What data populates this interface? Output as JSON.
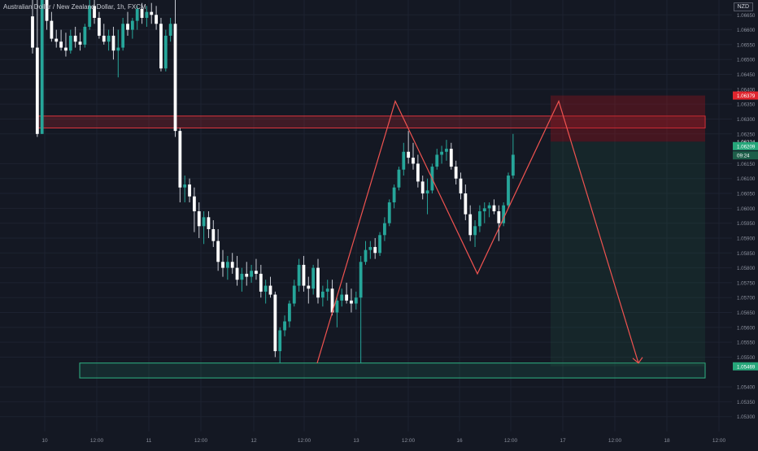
{
  "chart_data": {
    "type": "candlestick",
    "title": "Australian Dollar / New Zealand Dollar, 1h, FXCM",
    "currency": "NZD",
    "ylim": [
      1.0525,
      1.067
    ],
    "price_ticks": [
      "1.06650",
      "1.06600",
      "1.06550",
      "1.06500",
      "1.06450",
      "1.06400",
      "1.06350",
      "1.06300",
      "1.06250",
      "1.06150",
      "1.06100",
      "1.06050",
      "1.06000",
      "1.05950",
      "1.05900",
      "1.05850",
      "1.05800",
      "1.05750",
      "1.05700",
      "1.05650",
      "1.05600",
      "1.05550",
      "1.05500",
      "1.05400",
      "1.05350",
      "1.05300"
    ],
    "time_ticks": [
      "10",
      "12:00",
      "11",
      "12:00",
      "12",
      "12:00",
      "13",
      "12:00",
      "16",
      "12:00",
      "17",
      "12:00",
      "18",
      "12:00"
    ],
    "price_labels": [
      {
        "value": "1.06379",
        "price": 1.06379,
        "color": "#e0262e"
      },
      {
        "value": "1.06224",
        "price": 1.06224,
        "color": "transparent"
      },
      {
        "value": "1.06209",
        "price": 1.06209,
        "color": "#26a67a"
      },
      {
        "value": "09:24",
        "price": 1.06178,
        "color": "#1e5e4a"
      },
      {
        "value": "1.05469",
        "price": 1.05469,
        "color": "#26a67a"
      }
    ],
    "series": [
      {
        "name": "AUDNZD",
        "candles": [
          [
            1.06645,
            1.067,
            1.0652,
            1.0654
          ],
          [
            1.0654,
            1.067,
            1.0624,
            1.0625
          ],
          [
            1.0625,
            1.067,
            1.0625,
            1.067
          ],
          [
            1.067,
            1.067,
            1.066,
            1.0663
          ],
          [
            1.0663,
            1.0666,
            1.0656,
            1.0657
          ],
          [
            1.0657,
            1.066,
            1.0654,
            1.0656
          ],
          [
            1.0656,
            1.066,
            1.0653,
            1.0654
          ],
          [
            1.0654,
            1.0659,
            1.0651,
            1.0653
          ],
          [
            1.0653,
            1.066,
            1.0652,
            1.0658
          ],
          [
            1.0658,
            1.0661,
            1.0654,
            1.0656
          ],
          [
            1.0656,
            1.0659,
            1.0653,
            1.0655
          ],
          [
            1.0655,
            1.0662,
            1.0654,
            1.0661
          ],
          [
            1.0661,
            1.067,
            1.066,
            1.0668
          ],
          [
            1.0668,
            1.067,
            1.0662,
            1.0664
          ],
          [
            1.0664,
            1.0666,
            1.0657,
            1.0658
          ],
          [
            1.0658,
            1.0662,
            1.0655,
            1.0656
          ],
          [
            1.0656,
            1.066,
            1.0653,
            1.0658
          ],
          [
            1.0658,
            1.0661,
            1.065,
            1.0653
          ],
          [
            1.0653,
            1.066,
            1.0644,
            1.0654
          ],
          [
            1.0654,
            1.0664,
            1.0653,
            1.0662
          ],
          [
            1.0662,
            1.0666,
            1.0658,
            1.066
          ],
          [
            1.066,
            1.0664,
            1.0657,
            1.0663
          ],
          [
            1.0663,
            1.0668,
            1.066,
            1.0667
          ],
          [
            1.0667,
            1.0669,
            1.0662,
            1.0664
          ],
          [
            1.0664,
            1.0668,
            1.0661,
            1.0666
          ],
          [
            1.0666,
            1.0669,
            1.0662,
            1.0665
          ],
          [
            1.0665,
            1.0668,
            1.066,
            1.0662
          ],
          [
            1.0662,
            1.0664,
            1.0646,
            1.0647
          ],
          [
            1.0647,
            1.066,
            1.0646,
            1.0658
          ],
          [
            1.0658,
            1.0664,
            1.0656,
            1.0662
          ],
          [
            1.0662,
            1.067,
            1.0624,
            1.0626
          ],
          [
            1.0626,
            1.0627,
            1.0602,
            1.0607
          ],
          [
            1.0607,
            1.0611,
            1.0602,
            1.0608
          ],
          [
            1.0608,
            1.061,
            1.0602,
            1.0604
          ],
          [
            1.0604,
            1.0607,
            1.0592,
            1.0599
          ],
          [
            1.0599,
            1.0602,
            1.059,
            1.0594
          ],
          [
            1.0594,
            1.0599,
            1.0588,
            1.0597
          ],
          [
            1.0597,
            1.0599,
            1.059,
            1.0593
          ],
          [
            1.0593,
            1.0596,
            1.0587,
            1.0589
          ],
          [
            1.0589,
            1.0593,
            1.0579,
            1.0582
          ],
          [
            1.0582,
            1.0586,
            1.0577,
            1.058
          ],
          [
            1.058,
            1.0584,
            1.0576,
            1.0582
          ],
          [
            1.0582,
            1.0585,
            1.0578,
            1.058
          ],
          [
            1.058,
            1.0584,
            1.0574,
            1.0576
          ],
          [
            1.0576,
            1.058,
            1.0572,
            1.0578
          ],
          [
            1.0578,
            1.0582,
            1.0574,
            1.0577
          ],
          [
            1.0577,
            1.0581,
            1.0575,
            1.0579
          ],
          [
            1.0579,
            1.0583,
            1.0576,
            1.0578
          ],
          [
            1.0578,
            1.0581,
            1.057,
            1.0572
          ],
          [
            1.0572,
            1.0576,
            1.0568,
            1.0574
          ],
          [
            1.0574,
            1.0577,
            1.057,
            1.0571
          ],
          [
            1.0571,
            1.0572,
            1.055,
            1.0552
          ],
          [
            1.0552,
            1.056,
            1.0548,
            1.0559
          ],
          [
            1.0559,
            1.0564,
            1.0557,
            1.0562
          ],
          [
            1.0562,
            1.0569,
            1.056,
            1.0568
          ],
          [
            1.0568,
            1.0576,
            1.0567,
            1.0574
          ],
          [
            1.0574,
            1.0583,
            1.0572,
            1.0581
          ],
          [
            1.0581,
            1.0584,
            1.0572,
            1.0574
          ],
          [
            1.0574,
            1.0577,
            1.0568,
            1.0573
          ],
          [
            1.0573,
            1.0581,
            1.0571,
            1.058
          ],
          [
            1.058,
            1.0583,
            1.0568,
            1.057
          ],
          [
            1.057,
            1.0574,
            1.0567,
            1.0572
          ],
          [
            1.0572,
            1.0576,
            1.0569,
            1.0573
          ],
          [
            1.0573,
            1.0576,
            1.0564,
            1.0565
          ],
          [
            1.0565,
            1.057,
            1.056,
            1.0569
          ],
          [
            1.0569,
            1.0573,
            1.0567,
            1.0571
          ],
          [
            1.0571,
            1.0575,
            1.0568,
            1.0569
          ],
          [
            1.0569,
            1.0573,
            1.0565,
            1.0568
          ],
          [
            1.0568,
            1.0572,
            1.0566,
            1.057
          ],
          [
            1.057,
            1.0584,
            1.0548,
            1.0582
          ],
          [
            1.0582,
            1.0589,
            1.0581,
            1.0586
          ],
          [
            1.0586,
            1.0589,
            1.0583,
            1.0587
          ],
          [
            1.0587,
            1.059,
            1.0583,
            1.0585
          ],
          [
            1.0585,
            1.0592,
            1.0584,
            1.0591
          ],
          [
            1.0591,
            1.0597,
            1.0589,
            1.0595
          ],
          [
            1.0595,
            1.0603,
            1.0594,
            1.0602
          ],
          [
            1.0602,
            1.0608,
            1.06,
            1.0607
          ],
          [
            1.0607,
            1.0614,
            1.0606,
            1.0613
          ],
          [
            1.0613,
            1.0622,
            1.0611,
            1.0619
          ],
          [
            1.0619,
            1.0626,
            1.0615,
            1.0617
          ],
          [
            1.0617,
            1.0622,
            1.0613,
            1.0615
          ],
          [
            1.0615,
            1.0618,
            1.0607,
            1.0609
          ],
          [
            1.0609,
            1.0611,
            1.0603,
            1.0605
          ],
          [
            1.0605,
            1.061,
            1.0598,
            1.0606
          ],
          [
            1.0606,
            1.0615,
            1.0605,
            1.0614
          ],
          [
            1.0614,
            1.062,
            1.0613,
            1.0618
          ],
          [
            1.0618,
            1.0621,
            1.0615,
            1.0619
          ],
          [
            1.0619,
            1.0623,
            1.0616,
            1.062
          ],
          [
            1.062,
            1.0622,
            1.0613,
            1.0614
          ],
          [
            1.0614,
            1.0616,
            1.0608,
            1.061
          ],
          [
            1.061,
            1.0612,
            1.0603,
            1.0605
          ],
          [
            1.0605,
            1.0608,
            1.0596,
            1.0598
          ],
          [
            1.0598,
            1.0601,
            1.0589,
            1.0591
          ],
          [
            1.0591,
            1.0596,
            1.0587,
            1.0594
          ],
          [
            1.0594,
            1.0601,
            1.0592,
            1.0599
          ],
          [
            1.0599,
            1.0602,
            1.0595,
            1.06
          ],
          [
            1.06,
            1.0602,
            1.0597,
            1.0601
          ],
          [
            1.0601,
            1.0603,
            1.0598,
            1.0599
          ],
          [
            1.0599,
            1.0601,
            1.0589,
            1.0595
          ],
          [
            1.0595,
            1.0602,
            1.0594,
            1.0601
          ],
          [
            1.0601,
            1.0612,
            1.06,
            1.0611
          ],
          [
            1.0611,
            1.0625,
            1.061,
            1.0618
          ]
        ]
      }
    ],
    "annotations": {
      "resistance_zone": [
        1.0627,
        1.0631
      ],
      "support_zone": [
        1.0543,
        1.0548
      ],
      "pattern_label": "M"
    }
  }
}
